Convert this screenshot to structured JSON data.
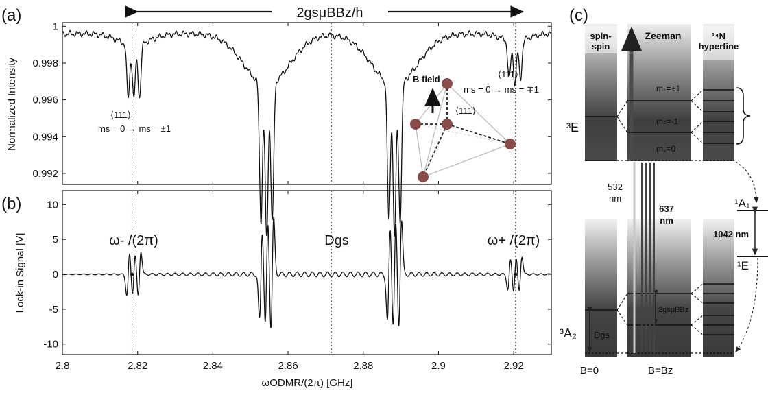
{
  "panels": {
    "a": "(a)",
    "b": "(b)",
    "c": "(c)"
  },
  "top_arrow_label": "2gsμBBz/h",
  "chart_data": [
    {
      "type": "line",
      "panel": "(a)",
      "ylabel": "Normalized Intensity",
      "xlim": [
        2.8,
        2.93
      ],
      "ylim": [
        0.9914,
        1.0002
      ],
      "yticks": [
        "1",
        "0.998",
        "0.996",
        "0.994",
        "0.992"
      ],
      "baseline": 0.9996,
      "dips": [
        {
          "center": 2.8175,
          "depth": 0.0029
        },
        {
          "center": 2.819,
          "depth": 0.0029
        },
        {
          "center": 2.8205,
          "depth": 0.0029
        },
        {
          "center": 2.8528,
          "depth": 0.0075
        },
        {
          "center": 2.8543,
          "depth": 0.0083
        },
        {
          "center": 2.8558,
          "depth": 0.0075
        },
        {
          "center": 2.8868,
          "depth": 0.0075
        },
        {
          "center": 2.8883,
          "depth": 0.0082
        },
        {
          "center": 2.8898,
          "depth": 0.0075
        },
        {
          "center": 2.9188,
          "depth": 0.0021
        },
        {
          "center": 2.9203,
          "depth": 0.0023
        },
        {
          "center": 2.9218,
          "depth": 0.0021
        }
      ],
      "annotations": {
        "left_dir": "⟨111⟩",
        "left_trans": "ms = 0 → ms = ±1",
        "right_dir": "⟨111⟩",
        "right_trans": "ms = 0 → ms = ∓1",
        "inset_field": "B field",
        "inset_dir": "⟨111⟩"
      }
    },
    {
      "type": "line",
      "panel": "(b)",
      "ylabel": "Lock-in Signal [V]",
      "xlabel": "ωODMR/(2π) [GHz]",
      "xlim": [
        2.8,
        2.93
      ],
      "ylim": [
        -11.5,
        12
      ],
      "xticks": [
        "2.8",
        "2.82",
        "2.84",
        "2.86",
        "2.88",
        "2.9",
        "2.92"
      ],
      "yticks": [
        "10",
        "5",
        "0",
        "-5",
        "-10"
      ],
      "baseline": 0,
      "resonances": [
        {
          "center": 2.8175,
          "amp": 4.2
        },
        {
          "center": 2.819,
          "amp": 4.0
        },
        {
          "center": 2.8205,
          "amp": 4.6
        },
        {
          "center": 2.8528,
          "amp": 9.2
        },
        {
          "center": 2.8543,
          "amp": 10.5
        },
        {
          "center": 2.8558,
          "amp": 11.3
        },
        {
          "center": 2.8868,
          "amp": 9.5
        },
        {
          "center": 2.8883,
          "amp": 10.5
        },
        {
          "center": 2.8898,
          "amp": 11.0
        },
        {
          "center": 2.9188,
          "amp": 3.0
        },
        {
          "center": 2.9203,
          "amp": 3.4
        },
        {
          "center": 2.9218,
          "amp": 3.6
        }
      ],
      "annotations": {
        "w_minus": "ω- /(2π)",
        "d_gs": "Dgs",
        "w_plus": "ω+ /(2π)"
      },
      "vlines": [
        2.8185,
        2.8715,
        2.9205
      ]
    }
  ],
  "diagram_c": {
    "col_spin": "spin-spin",
    "col_zeeman": "Zeeman",
    "col_hyperfine": "14N hyperfine",
    "lvl_plus1": "ms=+1",
    "lvl_minus1": "ms=-1",
    "lvl_zero": "ms=0",
    "state_3E": "3E",
    "state_3A2": "3A2",
    "state_1A1": "1A1",
    "state_1E": "1E",
    "nm532": "532 nm",
    "nm637": "637 nm",
    "nm1042": "1042 nm",
    "dgs": "Dgs",
    "zeeman_split": "2gsμBBz",
    "b0": "B=0",
    "bz": "B=Bz"
  },
  "colors": {
    "line": "#111111",
    "dark_band": "#3a3a3a",
    "mid_band": "#7a7a7a",
    "light_band": "#d6d6d6",
    "inset_ball": "#8a4b4b"
  }
}
